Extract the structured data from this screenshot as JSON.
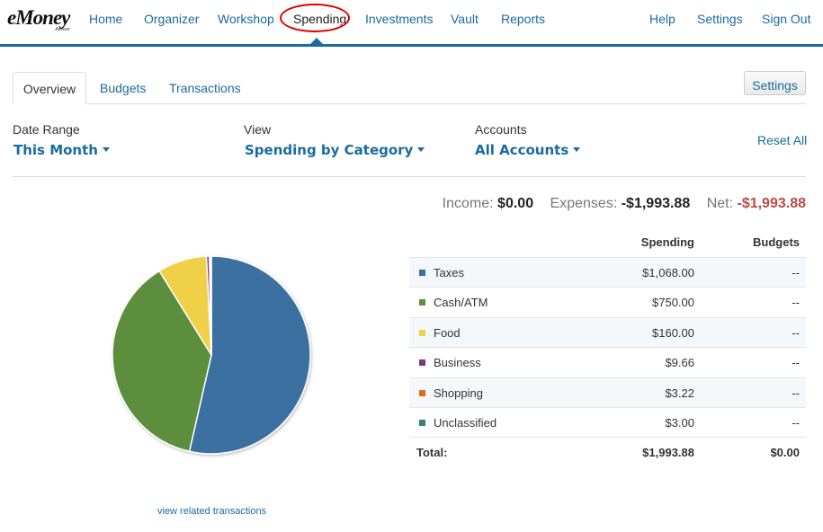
{
  "brand": {
    "name": "eMoney",
    "sub": "Advisor"
  },
  "nav": {
    "home": "Home",
    "organizer": "Organizer",
    "workshop": "Workshop",
    "spending": "Spending",
    "investments": "Investments",
    "vault": "Vault",
    "reports": "Reports",
    "help": "Help",
    "settings": "Settings",
    "signout": "Sign Out"
  },
  "tabs": {
    "overview": "Overview",
    "budgets": "Budgets",
    "transactions": "Transactions",
    "settings_button": "Settings"
  },
  "filters": {
    "date_range": {
      "label": "Date Range",
      "value": "This Month"
    },
    "view": {
      "label": "View",
      "value": "Spending by Category"
    },
    "accounts": {
      "label": "Accounts",
      "value": "All Accounts"
    },
    "reset": "Reset All"
  },
  "summary": {
    "income_label": "Income:",
    "income": "$0.00",
    "expenses_label": "Expenses:",
    "expenses": "-$1,993.88",
    "net_label": "Net:",
    "net": "-$1,993.88"
  },
  "table": {
    "headers": {
      "spending": "Spending",
      "budgets": "Budgets"
    },
    "rows": [
      {
        "name": "Taxes",
        "spending": "$1,068.00",
        "budget": "--",
        "color": "#3b6fa0"
      },
      {
        "name": "Cash/ATM",
        "spending": "$750.00",
        "budget": "--",
        "color": "#5b8e3e"
      },
      {
        "name": "Food",
        "spending": "$160.00",
        "budget": "--",
        "color": "#f0d04a"
      },
      {
        "name": "Business",
        "spending": "$9.66",
        "budget": "--",
        "color": "#7b3a7a"
      },
      {
        "name": "Shopping",
        "spending": "$3.22",
        "budget": "--",
        "color": "#e06a1f"
      },
      {
        "name": "Unclassified",
        "spending": "$3.00",
        "budget": "--",
        "color": "#3e7f73"
      }
    ],
    "total": {
      "label": "Total:",
      "spending": "$1,993.88",
      "budget": "$0.00"
    }
  },
  "pie": {
    "values": [
      1068.0,
      750.0,
      160.0,
      9.66,
      3.22,
      3.0
    ]
  },
  "view_link": "view related transactions"
}
